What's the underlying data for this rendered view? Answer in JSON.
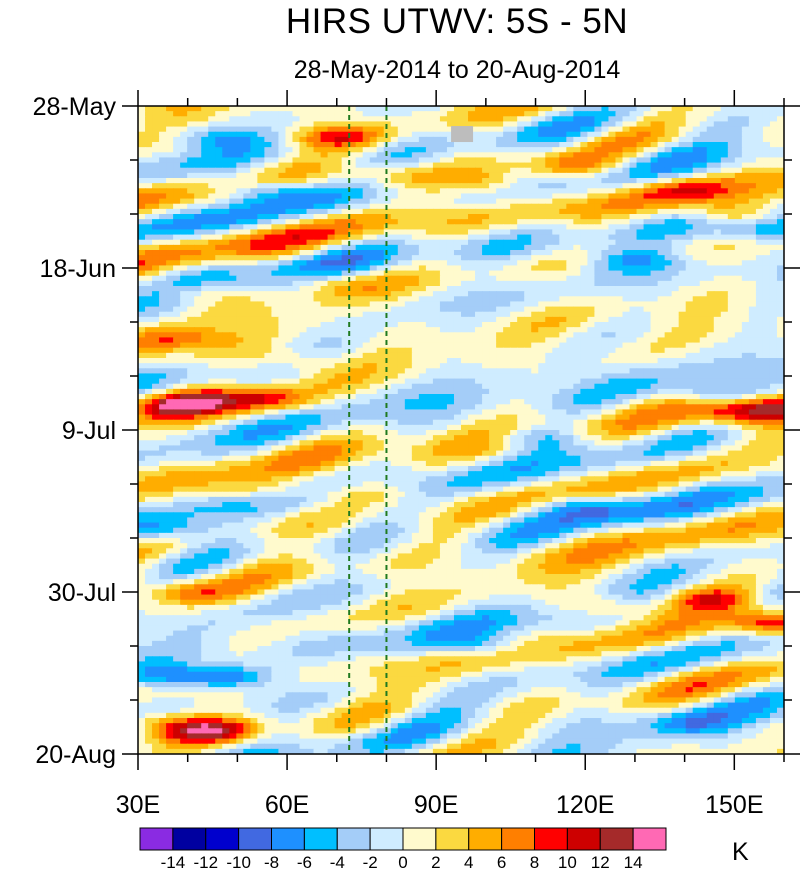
{
  "chart_data": {
    "type": "heatmap",
    "title": "HIRS UTWV: 5S - 5N",
    "subtitle": "28-May-2014 to 20-Aug-2014",
    "x_axis": {
      "label": "",
      "range": [
        30,
        160
      ],
      "ticks": [
        {
          "value": 30,
          "label": "30E"
        },
        {
          "value": 60,
          "label": "60E"
        },
        {
          "value": 90,
          "label": "90E"
        },
        {
          "value": 120,
          "label": "120E"
        },
        {
          "value": 150,
          "label": "150E"
        }
      ],
      "minor_step": 10
    },
    "y_axis": {
      "label": "",
      "range_days": [
        0,
        84
      ],
      "direction": "top-to-bottom",
      "ticks": [
        {
          "day": 0,
          "label": "28-May"
        },
        {
          "day": 21,
          "label": "18-Jun"
        },
        {
          "day": 42,
          "label": "9-Jul"
        },
        {
          "day": 63,
          "label": "30-Jul"
        },
        {
          "day": 84,
          "label": "20-Aug"
        }
      ],
      "minor_step_days": 7
    },
    "reference_lines": {
      "lon": [
        72.5,
        80
      ],
      "color": "#1f7a1f",
      "style": "dashed"
    },
    "colorbar": {
      "units": "K",
      "levels": [
        "-14",
        "-12",
        "-10",
        "-8",
        "-6",
        "-4",
        "-2",
        "0",
        "2",
        "4",
        "6",
        "8",
        "10",
        "12",
        "14"
      ],
      "colors": [
        "#8a2be2",
        "#0000a0",
        "#0000cd",
        "#4169e1",
        "#1e90ff",
        "#00bfff",
        "#a4cdf8",
        "#cfecff",
        "#fffacd",
        "#fbd940",
        "#ffad00",
        "#ff7f00",
        "#ff0000",
        "#cd0000",
        "#a52a2a",
        "#ff69b4"
      ]
    },
    "missing_color": "#bdbdbd",
    "features": [
      {
        "lon": 45,
        "day": 4,
        "value": -6
      },
      {
        "lon": 56,
        "day": 11,
        "value": -6
      },
      {
        "lon": 70,
        "day": 4,
        "value": 8
      },
      {
        "lon": 80,
        "day": 9,
        "value": 5
      },
      {
        "lon": 100,
        "day": 10,
        "value": 5
      },
      {
        "lon": 118,
        "day": 8,
        "value": 6
      },
      {
        "lon": 140,
        "day": 11,
        "value": 5
      },
      {
        "lon": 150,
        "day": 14,
        "value": 6
      },
      {
        "lon": 130,
        "day": 20,
        "value": -6
      },
      {
        "lon": 156,
        "day": 16,
        "value": -6
      },
      {
        "lon": 40,
        "day": 24,
        "value": 5
      },
      {
        "lon": 70,
        "day": 23,
        "value": 4
      },
      {
        "lon": 36,
        "day": 30,
        "value": 6
      },
      {
        "lon": 60,
        "day": 33,
        "value": 5
      },
      {
        "lon": 42,
        "day": 38,
        "value": 8
      },
      {
        "lon": 56,
        "day": 38,
        "value": 7
      },
      {
        "lon": 36,
        "day": 39,
        "value": 9
      },
      {
        "lon": 150,
        "day": 40,
        "value": 9
      },
      {
        "lon": 158,
        "day": 39,
        "value": 10
      },
      {
        "lon": 110,
        "day": 43,
        "value": -6
      },
      {
        "lon": 145,
        "day": 37,
        "value": -5
      },
      {
        "lon": 75,
        "day": 50,
        "value": 5
      },
      {
        "lon": 55,
        "day": 50,
        "value": 4
      },
      {
        "lon": 35,
        "day": 55,
        "value": -6
      },
      {
        "lon": 120,
        "day": 52,
        "value": -5
      },
      {
        "lon": 40,
        "day": 63,
        "value": 5
      },
      {
        "lon": 125,
        "day": 65,
        "value": 7
      },
      {
        "lon": 145,
        "day": 64,
        "value": 9
      },
      {
        "lon": 158,
        "day": 67,
        "value": 10
      },
      {
        "lon": 48,
        "day": 74,
        "value": -10
      },
      {
        "lon": 35,
        "day": 74,
        "value": -6
      },
      {
        "lon": 100,
        "day": 70,
        "value": -5
      },
      {
        "lon": 45,
        "day": 81,
        "value": 10
      },
      {
        "lon": 35,
        "day": 80,
        "value": 6
      },
      {
        "lon": 140,
        "day": 80,
        "value": -4
      }
    ]
  }
}
